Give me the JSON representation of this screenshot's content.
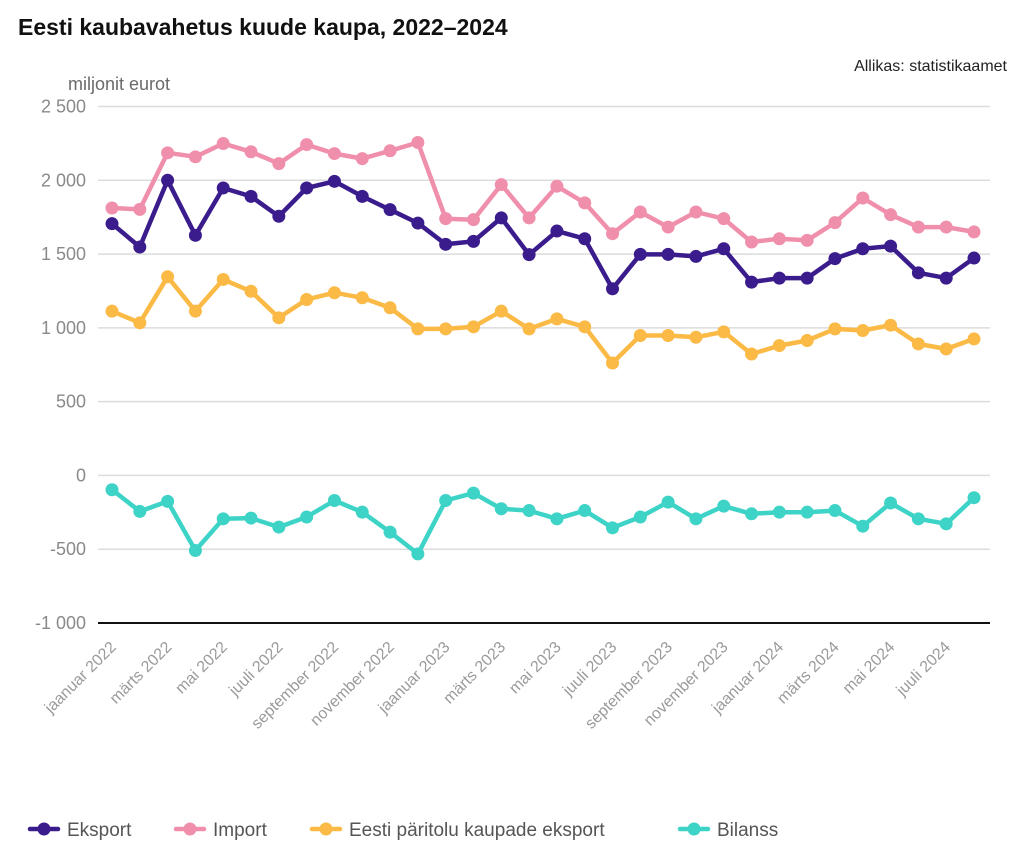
{
  "title": "Eesti kaubavahetus kuude kaupa, 2022–2024",
  "source": "Allikas: statistikaamet",
  "chart_data": {
    "type": "line",
    "title": "Eesti kaubavahetus kuude kaupa, 2022–2024",
    "ylabel": "miljonit eurot",
    "xlabel": "",
    "ylim": [
      -1000,
      2500
    ],
    "yticks": [
      2500,
      2000,
      1500,
      1000,
      500,
      0,
      -500,
      -1000
    ],
    "ytick_labels": [
      "2 500",
      "2 000",
      "1 500",
      "1 000",
      "500",
      "0",
      "-500",
      "-1 000"
    ],
    "grid": true,
    "legend_position": "bottom-left",
    "x": [
      "jaanuar 2022",
      "veebruar 2022",
      "märts 2022",
      "aprill 2022",
      "mai 2022",
      "juuni 2022",
      "juuli 2022",
      "august 2022",
      "september 2022",
      "oktoober 2022",
      "november 2022",
      "detsember 2022",
      "jaanuar 2023",
      "veebruar 2023",
      "märts 2023",
      "aprill 2023",
      "mai 2023",
      "juuni 2023",
      "juuli 2023",
      "august 2023",
      "september 2023",
      "oktoober 2023",
      "november 2023",
      "detsember 2023",
      "jaanuar 2024",
      "veebruar 2024",
      "märts 2024",
      "aprill 2024",
      "mai 2024",
      "juuni 2024",
      "juuli 2024",
      "august 2024"
    ],
    "xtick_labels": [
      {
        "index": 0,
        "label": "jaanuar 2022"
      },
      {
        "index": 2,
        "label": "märts 2022"
      },
      {
        "index": 4,
        "label": "mai 2022"
      },
      {
        "index": 6,
        "label": "juuli 2022"
      },
      {
        "index": 8,
        "label": "september 2022"
      },
      {
        "index": 10,
        "label": "november 2022"
      },
      {
        "index": 12,
        "label": "jaanuar 2023"
      },
      {
        "index": 14,
        "label": "märts 2023"
      },
      {
        "index": 16,
        "label": "mai 2023"
      },
      {
        "index": 18,
        "label": "juuli 2023"
      },
      {
        "index": 20,
        "label": "september 2023"
      },
      {
        "index": 22,
        "label": "november 2023"
      },
      {
        "index": 24,
        "label": "jaanuar 2024"
      },
      {
        "index": 26,
        "label": "märts 2024"
      },
      {
        "index": 28,
        "label": "mai 2024"
      },
      {
        "index": 30,
        "label": "juuli 2024"
      }
    ],
    "series": [
      {
        "name": "Eksport",
        "color": "#3b1c8c",
        "values": [
          1706,
          1548,
          2000,
          1627,
          1948,
          1891,
          1756,
          1948,
          1993,
          1891,
          1801,
          1710,
          1566,
          1586,
          1745,
          1496,
          1656,
          1604,
          1265,
          1498,
          1498,
          1484,
          1536,
          1310,
          1337,
          1337,
          1469,
          1536,
          1554,
          1373,
          1337,
          1473
        ]
      },
      {
        "name": "Import",
        "color": "#f08fab",
        "values": [
          1812,
          1803,
          2186,
          2159,
          2249,
          2193,
          2113,
          2242,
          2181,
          2147,
          2200,
          2256,
          1740,
          1733,
          1971,
          1745,
          1960,
          1847,
          1638,
          1785,
          1683,
          1785,
          1740,
          1582,
          1604,
          1593,
          1713,
          1880,
          1767,
          1683,
          1683,
          1650
        ]
      },
      {
        "name": "Eesti päritolu kaupade eksport",
        "color": "#fbb945",
        "values": [
          1113,
          1034,
          1346,
          1113,
          1328,
          1248,
          1068,
          1192,
          1238,
          1204,
          1136,
          993,
          993,
          1007,
          1113,
          993,
          1061,
          1007,
          762,
          948,
          948,
          936,
          973,
          823,
          880,
          914,
          993,
          982,
          1018,
          891,
          857,
          925
        ]
      },
      {
        "name": "Bilanss",
        "color": "#3dd3c6",
        "values": [
          -97,
          -244,
          -176,
          -509,
          -294,
          -289,
          -350,
          -282,
          -170,
          -249,
          -384,
          -532,
          -170,
          -120,
          -226,
          -238,
          -294,
          -238,
          -355,
          -282,
          -181,
          -294,
          -208,
          -260,
          -249,
          -249,
          -238,
          -344,
          -187,
          -294,
          -328,
          -151
        ]
      }
    ]
  }
}
